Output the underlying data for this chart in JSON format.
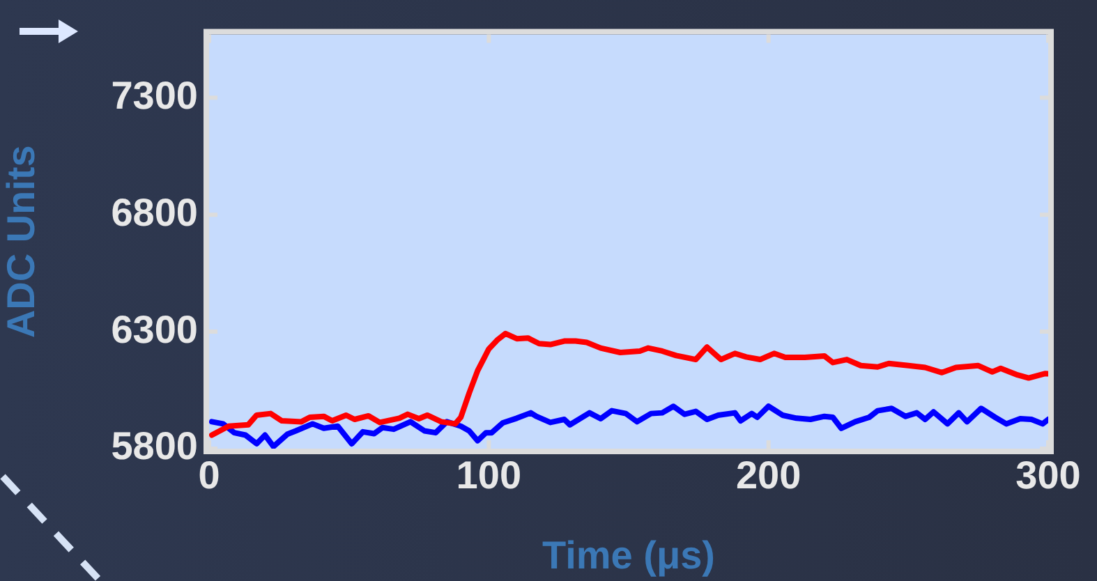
{
  "chart_data": {
    "type": "line",
    "xlabel": "Time (μs)",
    "ylabel": "ADC Units",
    "xlim": [
      0,
      300
    ],
    "xticks": [
      0,
      100,
      200,
      300
    ],
    "ylim": [
      5800,
      7570
    ],
    "yticks": [
      5800,
      6300,
      6800,
      7300
    ],
    "grid": false,
    "legend": false,
    "marker": "none",
    "line_style": "solid",
    "series": [
      {
        "color": "#ff0000",
        "x": [
          1,
          7,
          14,
          17,
          22,
          26,
          33,
          36,
          41,
          44,
          49,
          52,
          57,
          61,
          68,
          71,
          75,
          78,
          83,
          88,
          90,
          93,
          96,
          100,
          103,
          106,
          110,
          114,
          118,
          122,
          127,
          131,
          135,
          140,
          147,
          154,
          157,
          162,
          167,
          174,
          178,
          183,
          188,
          192,
          197,
          202,
          206,
          213,
          220,
          223,
          228,
          233,
          239,
          243,
          250,
          256,
          262,
          267,
          275,
          280,
          283,
          289,
          293,
          299,
          300
        ],
        "values": [
          5858,
          5896,
          5902,
          5943,
          5950,
          5919,
          5915,
          5934,
          5938,
          5919,
          5943,
          5925,
          5940,
          5912,
          5930,
          5947,
          5928,
          5943,
          5915,
          5906,
          5934,
          6038,
          6133,
          6226,
          6264,
          6292,
          6270,
          6273,
          6249,
          6245,
          6260,
          6260,
          6254,
          6230,
          6211,
          6217,
          6230,
          6217,
          6198,
          6181,
          6234,
          6181,
          6207,
          6192,
          6181,
          6207,
          6190,
          6190,
          6196,
          6168,
          6181,
          6155,
          6149,
          6164,
          6155,
          6147,
          6125,
          6147,
          6155,
          6128,
          6143,
          6115,
          6102,
          6121,
          6120
        ]
      },
      {
        "color": "#0000ff",
        "x": [
          1,
          5,
          9,
          13,
          17,
          20,
          23,
          28,
          31,
          37,
          41,
          46,
          51,
          55,
          59,
          62,
          66,
          72,
          77,
          81,
          85,
          90,
          93,
          96,
          99,
          101,
          105,
          110,
          115,
          117,
          122,
          127,
          129,
          136,
          140,
          144,
          149,
          153,
          158,
          162,
          166,
          170,
          174,
          178,
          182,
          188,
          190,
          194,
          196,
          200,
          205,
          210,
          215,
          220,
          223,
          226,
          231,
          236,
          239,
          244,
          249,
          253,
          256,
          259,
          264,
          268,
          271,
          276,
          281,
          285,
          290,
          294,
          298,
          300
        ],
        "values": [
          5915,
          5906,
          5868,
          5858,
          5821,
          5858,
          5809,
          5862,
          5876,
          5906,
          5887,
          5896,
          5821,
          5872,
          5864,
          5890,
          5883,
          5915,
          5876,
          5868,
          5915,
          5896,
          5876,
          5834,
          5868,
          5868,
          5910,
          5930,
          5953,
          5938,
          5912,
          5925,
          5902,
          5953,
          5928,
          5962,
          5950,
          5915,
          5950,
          5953,
          5981,
          5947,
          5959,
          5925,
          5943,
          5953,
          5919,
          5950,
          5934,
          5981,
          5943,
          5930,
          5925,
          5938,
          5934,
          5887,
          5915,
          5934,
          5962,
          5972,
          5938,
          5953,
          5925,
          5957,
          5906,
          5953,
          5915,
          5972,
          5934,
          5906,
          5928,
          5925,
          5906,
          5925
        ]
      }
    ]
  }
}
